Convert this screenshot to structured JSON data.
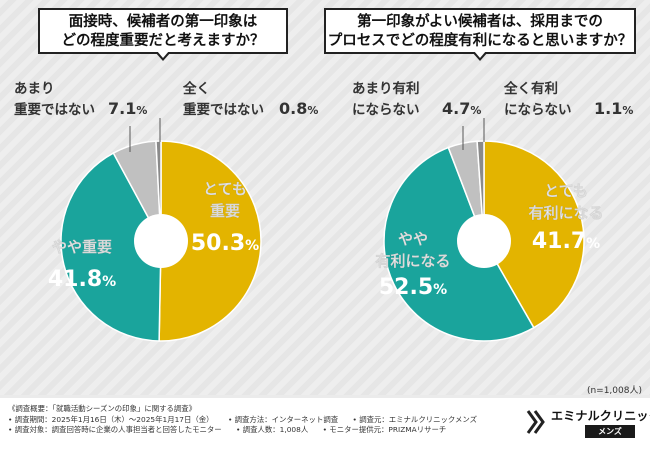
{
  "chart_data": [
    {
      "type": "pie",
      "title_lines": [
        "面接時、候補者の第一印象は",
        "どの程度重要だと考えますか？"
      ],
      "slices": [
        {
          "label_lines": [
            "とても",
            "重要"
          ],
          "pct_num": "50.3",
          "pct_unit": "%",
          "value": 50.3,
          "color": "#e3b400"
        },
        {
          "label_lines": [
            "やや重要"
          ],
          "pct_num": "41.8",
          "pct_unit": "%",
          "value": 41.8,
          "color": "#1aa49c"
        },
        {
          "label_lines": [
            "あまり",
            "重要ではない"
          ],
          "pct_num": "7.1",
          "pct_unit": "%",
          "value": 7.1,
          "color": "#c0c0c0"
        },
        {
          "label_lines": [
            "全く",
            "重要ではない"
          ],
          "pct_num": "0.8",
          "pct_unit": "%",
          "value": 0.8,
          "color": "#8a8a8a"
        }
      ]
    },
    {
      "type": "pie",
      "title_lines": [
        "第一印象がよい候補者は、採用までの",
        "プロセスでどの程度有利になると思いますか？"
      ],
      "slices": [
        {
          "label_lines": [
            "とても",
            "有利になる"
          ],
          "pct_num": "41.7",
          "pct_unit": "%",
          "value": 41.7,
          "color": "#e3b400"
        },
        {
          "label_lines": [
            "やや",
            "有利になる"
          ],
          "pct_num": "52.5",
          "pct_unit": "%",
          "value": 52.5,
          "color": "#1aa49c"
        },
        {
          "label_lines": [
            "あまり有利",
            "にならない"
          ],
          "pct_num": "4.7",
          "pct_unit": "%",
          "value": 4.7,
          "color": "#c0c0c0"
        },
        {
          "label_lines": [
            "全く有利",
            "にならない"
          ],
          "pct_num": "1.1",
          "pct_unit": "%",
          "value": 1.1,
          "color": "#8a8a8a"
        }
      ]
    }
  ],
  "sample_note": "(n=1,008人)",
  "footer": {
    "line1": [
      "《調査概要：「就職活動シーズンの印象」に関する調査》"
    ],
    "line2": [
      "• 調査期間：2025年1月16日（木）～2025年1月17日（金）",
      "• 調査方法：インターネット調査",
      "• 調査元：エミナルクリニックメンズ"
    ],
    "line3": [
      "• 調査対象：調査回答時に企業の人事担当者と回答したモニター",
      "• 調査人数：1,008人",
      "• モニター提供元：PRIZMAリサーチ"
    ]
  },
  "logo": {
    "brand": "エミナルクリニック",
    "sub": "メンズ"
  }
}
